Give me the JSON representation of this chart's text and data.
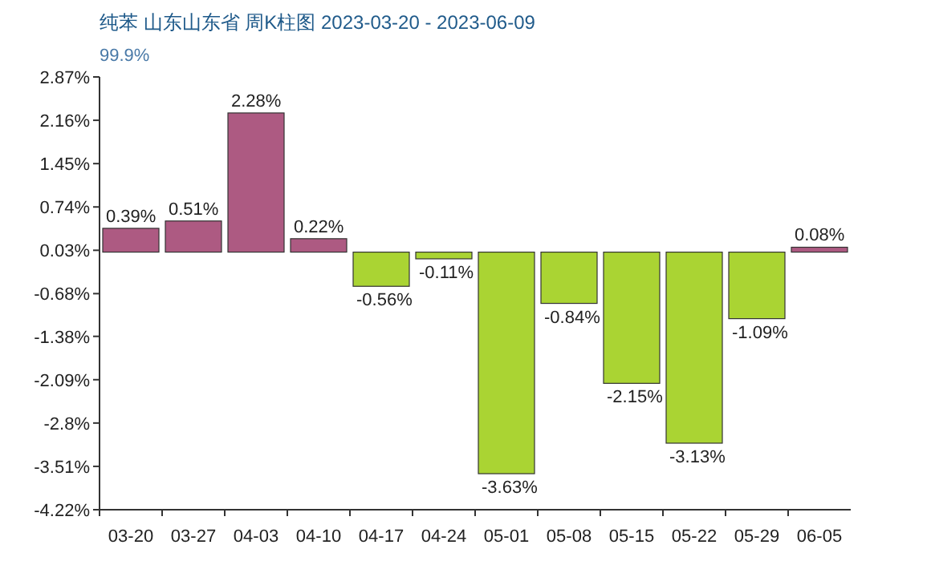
{
  "chart_data": {
    "type": "bar",
    "title": "纯苯 山东山东省 周K柱图 2023-03-20 - 2023-06-09",
    "subtitle": "99.9%",
    "categories": [
      "03-20",
      "03-27",
      "04-03",
      "04-10",
      "04-17",
      "04-24",
      "05-01",
      "05-08",
      "05-15",
      "05-22",
      "05-29",
      "06-05"
    ],
    "values": [
      0.39,
      0.51,
      2.28,
      0.22,
      -0.56,
      -0.11,
      -3.63,
      -0.84,
      -2.15,
      -3.13,
      -1.09,
      0.08
    ],
    "colors": [
      "#ad5a82",
      "#ad5a82",
      "#ad5a82",
      "#ad5a82",
      "#aad433",
      "#aad433",
      "#aad433",
      "#aad433",
      "#aad433",
      "#aad433",
      "#aad433",
      "#ad5a82"
    ],
    "value_labels": [
      "0.39%",
      "0.51%",
      "2.28%",
      "0.22%",
      "-0.56%",
      "-0.11%",
      "-3.63%",
      "-0.84%",
      "-2.15%",
      "-3.13%",
      "-1.09%",
      "0.08%"
    ],
    "ylim": [
      -4.22,
      2.87
    ],
    "yticks": [
      {
        "value": 2.87,
        "label": "2.87%"
      },
      {
        "value": 2.16,
        "label": "2.16%"
      },
      {
        "value": 1.45,
        "label": "1.45%"
      },
      {
        "value": 0.74,
        "label": "0.74%"
      },
      {
        "value": 0.03,
        "label": "0.03%"
      },
      {
        "value": -0.68,
        "label": "-0.68%"
      },
      {
        "value": -1.38,
        "label": "-1.38%"
      },
      {
        "value": -2.09,
        "label": "-2.09%"
      },
      {
        "value": -2.8,
        "label": "-2.8%"
      },
      {
        "value": -3.51,
        "label": "-3.51%"
      },
      {
        "value": -4.22,
        "label": "-4.22%"
      }
    ],
    "grid": false
  }
}
